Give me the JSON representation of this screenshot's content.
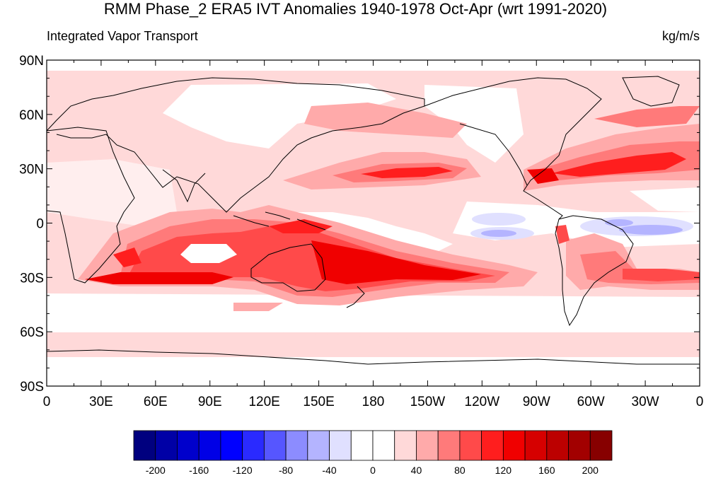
{
  "title": "RMM Phase_2 ERA5 IVT Anomalies 1940-1978 Oct-Apr (wrt 1991-2020)",
  "subtitle_left": "Integrated Vapor Transport",
  "subtitle_right": "kg/m/s",
  "map": {
    "projection": "cylindrical equidistant",
    "lon_range": [
      0,
      360
    ],
    "lat_range": [
      -90,
      90
    ],
    "x_ticks": [
      "0",
      "30E",
      "60E",
      "90E",
      "120E",
      "150E",
      "180",
      "150W",
      "120W",
      "90W",
      "60W",
      "30W",
      "0"
    ],
    "y_ticks": [
      "90N",
      "60N",
      "30N",
      "0",
      "30S",
      "60S",
      "90S"
    ]
  },
  "colorbar": {
    "levels": [
      -200,
      -180,
      -160,
      -140,
      -120,
      -100,
      -80,
      -60,
      -40,
      -20,
      0,
      20,
      40,
      60,
      80,
      100,
      120,
      140,
      160,
      180,
      200
    ],
    "labels": [
      "-200",
      "-160",
      "-120",
      "-80",
      "-40",
      "0",
      "40",
      "80",
      "120",
      "160",
      "200"
    ],
    "colors": [
      "#00007f",
      "#0000a6",
      "#0000cc",
      "#0000e6",
      "#0000ff",
      "#2a2aff",
      "#5656ff",
      "#8c8cff",
      "#b4b4ff",
      "#e0e0ff",
      "#ffffff",
      "#ffffff",
      "#ffd9d9",
      "#ffaaaa",
      "#ff7a7a",
      "#ff4a4a",
      "#ff1e1e",
      "#f00000",
      "#d60000",
      "#bc0000",
      "#a20000",
      "#870000"
    ]
  }
}
